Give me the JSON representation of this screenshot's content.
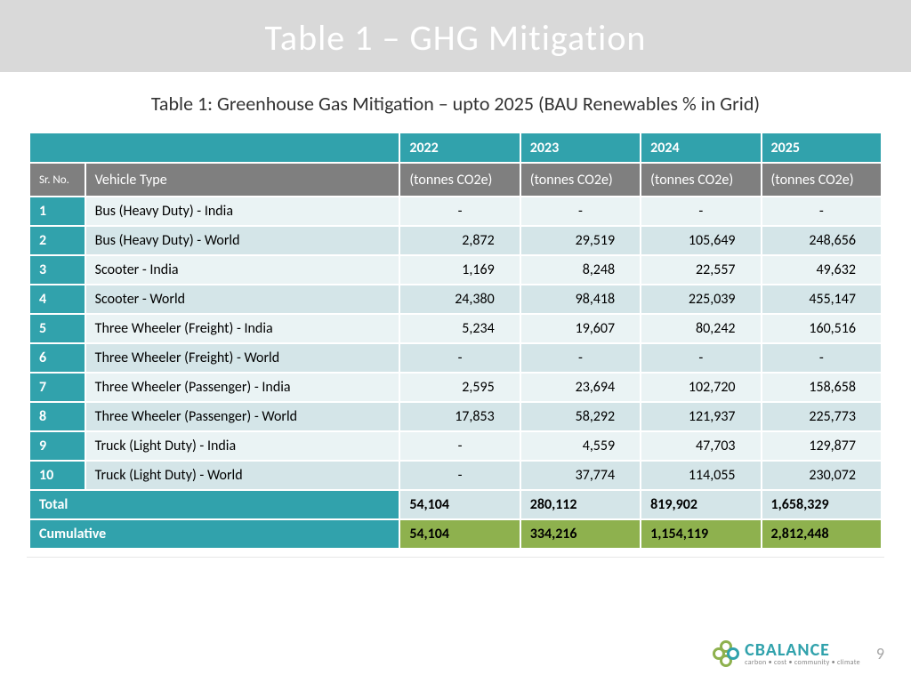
{
  "header": {
    "title": "Table 1 – GHG Mitigation"
  },
  "subtitle": "Table 1: Greenhouse Gas Mitigation – upto 2025 (BAU Renewables % in Grid)",
  "colors": {
    "title_bar_bg": "#d9d9d9",
    "teal": "#31a2ac",
    "gray_header": "#7f7f7f",
    "row_light": "#eaf3f4",
    "row_dark": "#d4e5e8",
    "green": "#8eb14e"
  },
  "table": {
    "years": [
      "2022",
      "2023",
      "2024",
      "2025"
    ],
    "unit_label": "(tonnes CO2e)",
    "sr_label": "Sr. No.",
    "vt_label": "Vehicle Type",
    "rows": [
      {
        "sr": "1",
        "name": "Bus (Heavy Duty) - India",
        "v": [
          "-",
          "-",
          "-",
          "-"
        ]
      },
      {
        "sr": "2",
        "name": "Bus (Heavy Duty) - World",
        "v": [
          "2,872",
          "29,519",
          "105,649",
          "248,656"
        ]
      },
      {
        "sr": "3",
        "name": "Scooter - India",
        "v": [
          "1,169",
          "8,248",
          "22,557",
          "49,632"
        ]
      },
      {
        "sr": "4",
        "name": "Scooter - World",
        "v": [
          "24,380",
          "98,418",
          "225,039",
          "455,147"
        ]
      },
      {
        "sr": "5",
        "name": "Three Wheeler (Freight) - India",
        "v": [
          "5,234",
          "19,607",
          "80,242",
          "160,516"
        ]
      },
      {
        "sr": "6",
        "name": "Three Wheeler (Freight) - World",
        "v": [
          "-",
          "-",
          "-",
          "-"
        ]
      },
      {
        "sr": "7",
        "name": "Three Wheeler (Passenger) - India",
        "v": [
          "2,595",
          "23,694",
          "102,720",
          "158,658"
        ]
      },
      {
        "sr": "8",
        "name": "Three Wheeler (Passenger) - World",
        "v": [
          "17,853",
          "58,292",
          "121,937",
          "225,773"
        ]
      },
      {
        "sr": "9",
        "name": "Truck (Light Duty) - India",
        "v": [
          "-",
          "4,559",
          "47,703",
          "129,877"
        ]
      },
      {
        "sr": "10",
        "name": "Truck (Light Duty) - World",
        "v": [
          "-",
          "37,774",
          "114,055",
          "230,072"
        ]
      }
    ],
    "total_label": "Total",
    "total": [
      "54,104",
      "280,112",
      "819,902",
      "1,658,329"
    ],
    "cumulative_label": "Cumulative",
    "cumulative": [
      "54,104",
      "334,216",
      "1,154,119",
      "2,812,448"
    ]
  },
  "footer": {
    "logo_main": "CBALANCE",
    "logo_tag": "carbon • cost • community • climate",
    "page_number": "9"
  }
}
